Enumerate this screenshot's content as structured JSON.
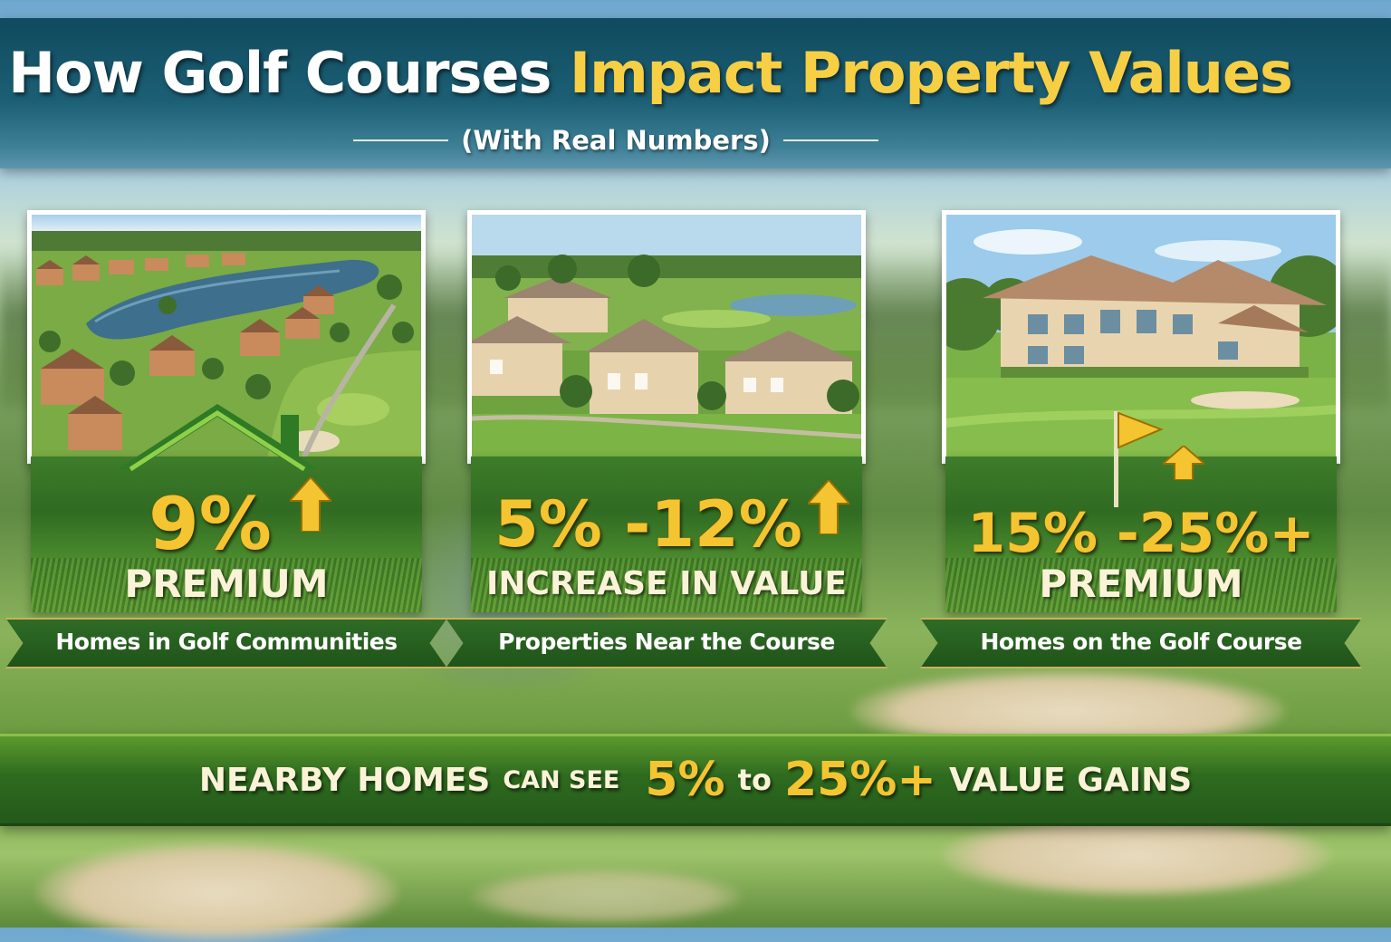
{
  "header": {
    "title_part1": "How Golf Courses",
    "title_part2": "Impact Property Values",
    "subtitle": "(With Real Numbers)"
  },
  "cards": [
    {
      "stat": "9%",
      "caption": "PREMIUM",
      "label": "Homes in Golf Communities",
      "icon": "house-roof-icon"
    },
    {
      "stat": "5% -12%",
      "caption": "INCREASE IN VALUE",
      "label": "Properties Near the Course",
      "icon": "up-arrow-icon"
    },
    {
      "stat": "15% -25%+",
      "caption": "PREMIUM",
      "label": "Homes on the Golf Course",
      "icon": "golf-flag-icon"
    }
  ],
  "footer": {
    "lead_1": "NEARBY HOMES",
    "lead_2": "CAN SEE",
    "low": "5%",
    "to": "to",
    "high": "25%+",
    "tail": "VALUE GAINS"
  },
  "colors": {
    "accent_gold": "#f5c431",
    "title_band": "#1c5f75",
    "ribbon_green": "#2f6b26"
  }
}
